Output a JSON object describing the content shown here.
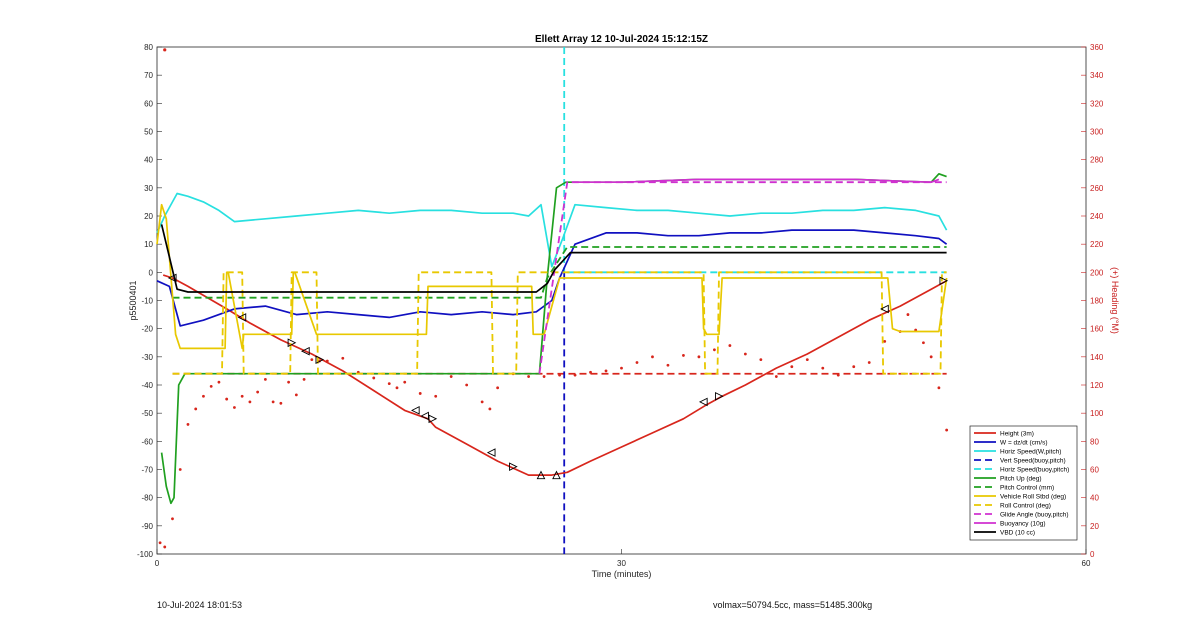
{
  "footer": {
    "timestamp": "10-Jul-2024 18:01:53",
    "volmax_mass": "volmax=50794.5cc, mass=51485.300kg"
  },
  "chart_data": {
    "type": "line",
    "title": "Ellett Array 12 10-Jul-2024 15:12:15Z",
    "xlabel": "Time (minutes)",
    "ylabel": "p5500401",
    "y2label": "(+) Heading (°M)",
    "xlim": [
      0,
      60
    ],
    "ylim": [
      -100,
      80
    ],
    "y2lim": [
      0,
      360
    ],
    "xticks": [
      0,
      30,
      60
    ],
    "yticks": [
      -100,
      -90,
      -80,
      -70,
      -60,
      -50,
      -40,
      -30,
      -20,
      -10,
      0,
      10,
      20,
      30,
      40,
      50,
      60,
      70,
      80
    ],
    "y2ticks": [
      0,
      20,
      40,
      60,
      80,
      100,
      120,
      140,
      160,
      180,
      200,
      220,
      240,
      260,
      280,
      300,
      320,
      340,
      360
    ],
    "grid": false,
    "legend_position": "bottom-right",
    "colors": {
      "height": "#d8261c",
      "w": "#1010c0",
      "horiz": "#28e0e0",
      "pitch": "#20a020",
      "roll": "#e8c800",
      "glide": "#d030d0",
      "vbd": "#000000",
      "heading_axis": "#c82020"
    },
    "series": [
      {
        "name": "Height (3m)",
        "color": "#d8261c",
        "style": "solid",
        "x": [
          0.4,
          1.0,
          2.0,
          4.5,
          6.0,
          8.0,
          10.0,
          11.0,
          12.0,
          14.0,
          16.0,
          17.5,
          18.0,
          20.0,
          22.0,
          24.0,
          25.5,
          26.5,
          28.0,
          30.0,
          32.0,
          34.0,
          35.5,
          36.5,
          38.0,
          40.0,
          42.0,
          44.0,
          46.0,
          48.0,
          50.0,
          51.0
        ],
        "y": [
          -1,
          -2,
          -5,
          -13,
          -18,
          -24,
          -29,
          -32,
          -35,
          -42,
          -49,
          -52,
          -55,
          -61,
          -67,
          -72,
          -72,
          -71,
          -67,
          -62,
          -57,
          -52,
          -47,
          -44,
          -40,
          -34,
          -29,
          -23,
          -17,
          -12,
          -6,
          -3
        ]
      },
      {
        "name": "W = dz/dt (cm/s)",
        "color": "#1010c0",
        "style": "solid",
        "x": [
          0,
          0.8,
          1.5,
          3,
          5,
          7,
          9,
          11,
          13,
          15,
          17,
          19,
          21,
          23,
          24.5,
          25.5,
          26,
          26.5,
          27,
          29,
          31,
          33,
          35,
          37,
          39,
          41,
          43,
          45,
          47,
          49,
          50.5,
          51
        ],
        "y": [
          -3,
          -5,
          -19,
          -17,
          -13,
          -12,
          -15,
          -14,
          -15,
          -16,
          -14,
          -15,
          -14,
          -15,
          -14,
          -10,
          -2,
          4,
          10,
          14,
          14,
          13,
          13,
          14,
          14,
          15,
          15,
          15,
          14,
          13,
          12,
          10
        ]
      },
      {
        "name": "Horiz Speed(W,pitch)",
        "color": "#28e0e0",
        "style": "solid",
        "x": [
          0,
          0.5,
          1.3,
          2,
          3,
          4,
          5,
          7,
          9,
          11,
          13,
          15,
          17,
          19,
          21,
          23,
          24,
          24.8,
          25.5,
          26.2,
          27,
          29,
          31,
          33,
          35,
          37,
          39,
          41,
          43,
          45,
          47,
          49,
          50.5,
          51
        ],
        "y": [
          14,
          20,
          28,
          27,
          25,
          22,
          18,
          19,
          20,
          21,
          22,
          21,
          22,
          22,
          21,
          21,
          20,
          24,
          2,
          12,
          24,
          23,
          22,
          22,
          21,
          20,
          21,
          21,
          22,
          22,
          23,
          22,
          20,
          15
        ]
      },
      {
        "name": "Vert Speed(buoy,pitch)",
        "color": "#1010c0",
        "style": "dash",
        "x": [],
        "y": []
      },
      {
        "name": "Horiz Speed(buoy,pitch)",
        "color": "#28e0e0",
        "style": "dash",
        "x": [
          26.5,
          51
        ],
        "y": [
          0,
          0
        ]
      },
      {
        "name": "Pitch Up (deg)",
        "color": "#20a020",
        "style": "solid",
        "x": [
          0.3,
          0.6,
          0.9,
          1.1,
          1.4,
          1.8,
          2.5,
          4,
          10,
          20,
          24,
          24.7,
          25.2,
          25.8,
          26.4,
          27,
          30,
          35,
          40,
          45,
          50,
          50.5,
          51
        ],
        "y": [
          -64,
          -76,
          -82,
          -80,
          -40,
          -36,
          -36,
          -36,
          -36,
          -36,
          -36,
          -36,
          -2,
          30,
          32,
          32,
          32,
          33,
          33,
          33,
          32,
          35,
          34
        ]
      },
      {
        "name": "Pitch Control (mm)",
        "color": "#20a020",
        "style": "dash",
        "x": [
          1,
          24.8,
          25.2,
          26.5,
          51
        ],
        "y": [
          -9,
          -9,
          -2,
          9,
          9
        ]
      },
      {
        "name": "Vehicle Roll Stbd (deg)",
        "color": "#e8c800",
        "style": "solid",
        "x": [
          0,
          0.3,
          0.6,
          1.2,
          1.5,
          4.4,
          4.5,
          4.6,
          5.5,
          5.6,
          5.7,
          8.7,
          8.8,
          8.9,
          10.3,
          10.4,
          10.5,
          17.4,
          17.5,
          17.6,
          24.2,
          24.3,
          25,
          26,
          35.2,
          35.3,
          35.5,
          36.3,
          36.5,
          47.2,
          47.5,
          48,
          50.5,
          51
        ],
        "y": [
          10,
          24,
          19,
          -22,
          -27,
          -27,
          0,
          0,
          -27,
          -22,
          -22,
          -22,
          0,
          0,
          -22,
          -22,
          -22,
          -22,
          -5,
          -5,
          -5,
          -22,
          -22,
          -2,
          -2,
          -20,
          -22,
          -22,
          -2,
          -2,
          -20,
          -21,
          -21,
          -2
        ]
      },
      {
        "name": "Roll Control (deg)",
        "color": "#e8c800",
        "style": "dash",
        "x": [
          1,
          4.2,
          4.3,
          5.5,
          5.6,
          8.6,
          8.7,
          10.3,
          10.4,
          16.8,
          16.9,
          21.6,
          21.7,
          23.2,
          23.3,
          26,
          35.3,
          35.4,
          36.2,
          36.3,
          46.8,
          46.9,
          50.6,
          50.7,
          51
        ],
        "y": [
          -36,
          -36,
          0,
          0,
          -36,
          -36,
          0,
          0,
          -36,
          -36,
          0,
          0,
          -36,
          -36,
          0,
          0,
          0,
          -36,
          -36,
          0,
          0,
          -36,
          -36,
          0,
          0
        ]
      },
      {
        "name": "Glide Angle (buoy,pitch)",
        "color": "#d030d0",
        "style": "dash",
        "x": [
          24.7,
          26.5,
          51
        ],
        "y": [
          -36,
          32,
          32
        ]
      },
      {
        "name": "Buoyancy (10g)",
        "color": "#d030d0",
        "style": "solid",
        "x": [
          26.8,
          30,
          35,
          40,
          45,
          50,
          50.5
        ],
        "y": [
          32,
          32,
          33,
          33,
          33,
          32,
          33
        ]
      },
      {
        "name": "VBD (10 cc)",
        "color": "#000000",
        "style": "solid",
        "x": [
          0.3,
          1.3,
          2,
          24.5,
          25.2,
          25.7,
          26.2,
          26.7,
          51
        ],
        "y": [
          17,
          -6,
          -7,
          -7,
          -4,
          1,
          4,
          7,
          7
        ]
      }
    ],
    "heading_series": {
      "axis": "right",
      "color": "#d8261c",
      "style": "dotted",
      "x": [
        0.2,
        0.5,
        1.0,
        1.5,
        2.0,
        2.5,
        3.0,
        3.5,
        4.0,
        4.5,
        5.0,
        5.5,
        6.0,
        6.5,
        7.0,
        7.5,
        8.0,
        8.5,
        9.0,
        9.5,
        10.0,
        10.5,
        11.0,
        12.0,
        13.0,
        14.0,
        15.0,
        15.5,
        16.0,
        17.0,
        18.0,
        19.0,
        20.0,
        21.0,
        21.5,
        22.0,
        23.0,
        24.0,
        25.0,
        26.0,
        27.0,
        28.0,
        29.0,
        30.0,
        31.0,
        32.0,
        33.0,
        34.0,
        35.0,
        36.0,
        37.0,
        38.0,
        39.0,
        40.0,
        41.0,
        42.0,
        43.0,
        44.0,
        45.0,
        46.0,
        47.0,
        48.0,
        48.5,
        49.0,
        49.5,
        50.0,
        50.5,
        51.0
      ],
      "y": [
        8,
        5,
        25,
        60,
        92,
        103,
        112,
        119,
        122,
        110,
        104,
        112,
        108,
        115,
        124,
        108,
        107,
        122,
        113,
        124,
        138,
        137,
        137,
        139,
        129,
        125,
        121,
        118,
        122,
        114,
        112,
        126,
        120,
        108,
        103,
        118,
        128,
        126,
        126,
        127,
        127,
        129,
        130,
        132,
        136,
        140,
        134,
        141,
        140,
        145,
        148,
        142,
        138,
        126,
        133,
        138,
        132,
        127,
        133,
        136,
        151,
        158,
        170,
        159,
        150,
        140,
        118,
        88
      ]
    },
    "heading_outlier": {
      "x": 0.5,
      "y": 358
    },
    "markers": [
      {
        "x": 1.0,
        "y": -2,
        "dir": "left"
      },
      {
        "x": 5.5,
        "y": -16,
        "dir": "left"
      },
      {
        "x": 8.7,
        "y": -25,
        "dir": "right"
      },
      {
        "x": 9.6,
        "y": -28,
        "dir": "left"
      },
      {
        "x": 10.5,
        "y": -31,
        "dir": "right"
      },
      {
        "x": 16.7,
        "y": -49,
        "dir": "left"
      },
      {
        "x": 17.3,
        "y": -51,
        "dir": "left"
      },
      {
        "x": 17.8,
        "y": -52,
        "dir": "right"
      },
      {
        "x": 21.6,
        "y": -64,
        "dir": "left"
      },
      {
        "x": 23.0,
        "y": -69,
        "dir": "right"
      },
      {
        "x": 24.8,
        "y": -72,
        "dir": "up"
      },
      {
        "x": 25.8,
        "y": -72,
        "dir": "up"
      },
      {
        "x": 35.3,
        "y": -46,
        "dir": "left"
      },
      {
        "x": 36.3,
        "y": -44,
        "dir": "right"
      },
      {
        "x": 47.0,
        "y": -13,
        "dir": "left"
      },
      {
        "x": 50.8,
        "y": -3,
        "dir": "right"
      }
    ],
    "vlines": [
      {
        "x": 26.3,
        "y_from": 80,
        "y_to": 0,
        "color": "#28e0e0",
        "style": "dash"
      },
      {
        "x": 26.3,
        "y_from": 0,
        "y_to": -100,
        "color": "#1010c0",
        "style": "dash"
      }
    ],
    "hlines": [
      {
        "y": -36,
        "x_from": 1,
        "x_to": 51,
        "color": "#d8261c",
        "style": "dash"
      }
    ]
  }
}
